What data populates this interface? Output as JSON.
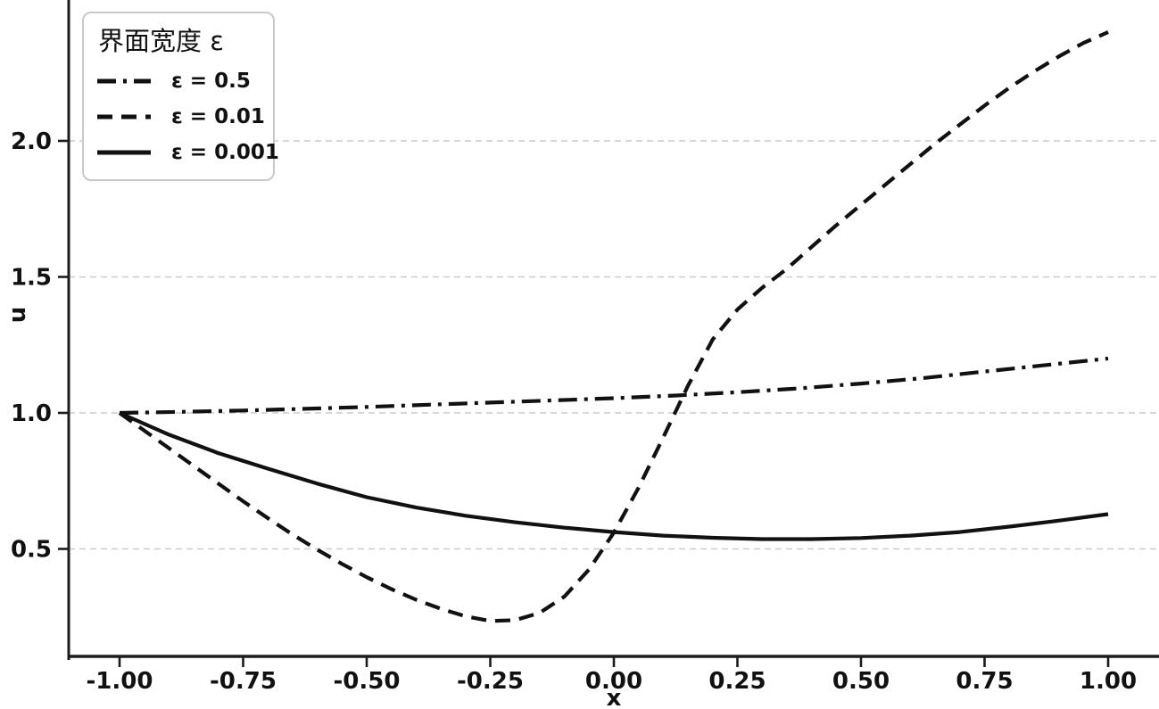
{
  "figure": {
    "background": "#ffffff",
    "axis_color": "#1c1c1c",
    "grid_color": "#cccccc",
    "text_color": "#111111"
  },
  "chart_data": {
    "type": "line",
    "title": "",
    "xlabel": "x",
    "ylabel": "u",
    "xlim": [
      -1.1,
      1.1
    ],
    "ylim": [
      0.1,
      2.52
    ],
    "grid": "horizontal dashed gridlines at y ticks",
    "legend": {
      "title": "界面宽度 ε",
      "position": "upper-left"
    },
    "x_ticks": [
      {
        "value": -1.0,
        "label": "-1.00"
      },
      {
        "value": -0.75,
        "label": "-0.75"
      },
      {
        "value": -0.5,
        "label": "-0.50"
      },
      {
        "value": -0.25,
        "label": "-0.25"
      },
      {
        "value": 0.0,
        "label": "0.00"
      },
      {
        "value": 0.25,
        "label": "0.25"
      },
      {
        "value": 0.5,
        "label": "0.50"
      },
      {
        "value": 0.75,
        "label": "0.75"
      },
      {
        "value": 1.0,
        "label": "1.00"
      }
    ],
    "y_ticks": [
      {
        "value": 0.5,
        "label": "0.5"
      },
      {
        "value": 1.0,
        "label": "1.0"
      },
      {
        "value": 1.5,
        "label": "1.5"
      },
      {
        "value": 2.0,
        "label": "2.0"
      }
    ],
    "series": [
      {
        "name": "epsilon-0.5",
        "label": "ε = 0.5",
        "linestyle": "dashdot",
        "color": "#111111",
        "points": [
          [
            -1.0,
            1.0
          ],
          [
            -0.875,
            1.004
          ],
          [
            -0.75,
            1.009
          ],
          [
            -0.625,
            1.015
          ],
          [
            -0.5,
            1.022
          ],
          [
            -0.375,
            1.03
          ],
          [
            -0.25,
            1.038
          ],
          [
            -0.125,
            1.046
          ],
          [
            0.0,
            1.054
          ],
          [
            0.125,
            1.064
          ],
          [
            0.25,
            1.076
          ],
          [
            0.375,
            1.09
          ],
          [
            0.5,
            1.108
          ],
          [
            0.625,
            1.128
          ],
          [
            0.75,
            1.152
          ],
          [
            0.875,
            1.176
          ],
          [
            1.0,
            1.2
          ]
        ]
      },
      {
        "name": "epsilon-0.01",
        "label": "ε = 0.01",
        "linestyle": "dashed",
        "color": "#111111",
        "points": [
          [
            -1.0,
            1.0
          ],
          [
            -0.95,
            0.935
          ],
          [
            -0.9,
            0.87
          ],
          [
            -0.85,
            0.805
          ],
          [
            -0.8,
            0.74
          ],
          [
            -0.75,
            0.675
          ],
          [
            -0.7,
            0.613
          ],
          [
            -0.65,
            0.553
          ],
          [
            -0.6,
            0.497
          ],
          [
            -0.55,
            0.445
          ],
          [
            -0.5,
            0.396
          ],
          [
            -0.45,
            0.352
          ],
          [
            -0.4,
            0.313
          ],
          [
            -0.35,
            0.28
          ],
          [
            -0.3,
            0.252
          ],
          [
            -0.25,
            0.235
          ],
          [
            -0.2,
            0.238
          ],
          [
            -0.15,
            0.265
          ],
          [
            -0.1,
            0.325
          ],
          [
            -0.05,
            0.425
          ],
          [
            0.0,
            0.56
          ],
          [
            0.05,
            0.725
          ],
          [
            0.1,
            0.91
          ],
          [
            0.15,
            1.1
          ],
          [
            0.2,
            1.27
          ],
          [
            0.25,
            1.38
          ],
          [
            0.3,
            1.46
          ],
          [
            0.35,
            1.53
          ],
          [
            0.4,
            1.61
          ],
          [
            0.45,
            1.69
          ],
          [
            0.5,
            1.765
          ],
          [
            0.55,
            1.84
          ],
          [
            0.6,
            1.915
          ],
          [
            0.65,
            1.99
          ],
          [
            0.7,
            2.06
          ],
          [
            0.75,
            2.13
          ],
          [
            0.8,
            2.195
          ],
          [
            0.85,
            2.255
          ],
          [
            0.9,
            2.31
          ],
          [
            0.95,
            2.36
          ],
          [
            1.0,
            2.4
          ]
        ]
      },
      {
        "name": "epsilon-0.001",
        "label": "ε = 0.001",
        "linestyle": "solid",
        "color": "#111111",
        "points": [
          [
            -1.0,
            1.0
          ],
          [
            -0.9,
            0.92
          ],
          [
            -0.8,
            0.852
          ],
          [
            -0.7,
            0.795
          ],
          [
            -0.6,
            0.74
          ],
          [
            -0.5,
            0.69
          ],
          [
            -0.4,
            0.652
          ],
          [
            -0.3,
            0.622
          ],
          [
            -0.2,
            0.598
          ],
          [
            -0.1,
            0.578
          ],
          [
            0.0,
            0.562
          ],
          [
            0.1,
            0.549
          ],
          [
            0.2,
            0.541
          ],
          [
            0.3,
            0.536
          ],
          [
            0.4,
            0.536
          ],
          [
            0.5,
            0.54
          ],
          [
            0.6,
            0.549
          ],
          [
            0.7,
            0.562
          ],
          [
            0.8,
            0.582
          ],
          [
            0.9,
            0.604
          ],
          [
            1.0,
            0.628
          ]
        ]
      }
    ]
  }
}
